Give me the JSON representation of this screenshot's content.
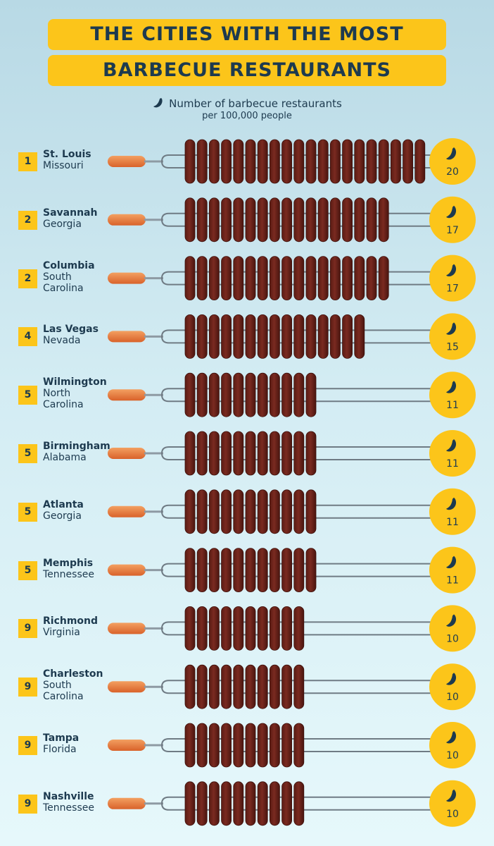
{
  "title_line1": "THE CITIES WITH THE MOST",
  "title_line2": "BARBECUE RESTAURANTS",
  "legend": {
    "icon": "sausage-icon",
    "line1": "Number of barbecue restaurants",
    "line2": "per 100,000 people"
  },
  "colors": {
    "title_bg": "#fcc51a",
    "text": "#1d3a4f",
    "sausage": "#7a2a20",
    "badge": "#fcc51a",
    "handle": "#e8793a"
  },
  "chart_data": {
    "type": "bar",
    "orientation": "horizontal",
    "unit": "Number of barbecue restaurants per 100,000 people",
    "categories": [
      "St. Louis",
      "Savannah",
      "Columbia",
      "Las Vegas",
      "Wilmington",
      "Birmingham",
      "Atlanta",
      "Memphis",
      "Richmond",
      "Charleston",
      "Tampa",
      "Nashville"
    ],
    "states": [
      "Missouri",
      "Georgia",
      "South Carolina",
      "Nevada",
      "North Carolina",
      "Alabama",
      "Georgia",
      "Tennessee",
      "Virginia",
      "South Carolina",
      "Florida",
      "Tennessee"
    ],
    "ranks": [
      "1",
      "2",
      "2",
      "4",
      "5",
      "5",
      "5",
      "5",
      "9",
      "9",
      "9",
      "9"
    ],
    "values": [
      20,
      17,
      17,
      15,
      11,
      11,
      11,
      11,
      10,
      10,
      10,
      10
    ],
    "xlim": [
      0,
      20
    ]
  }
}
